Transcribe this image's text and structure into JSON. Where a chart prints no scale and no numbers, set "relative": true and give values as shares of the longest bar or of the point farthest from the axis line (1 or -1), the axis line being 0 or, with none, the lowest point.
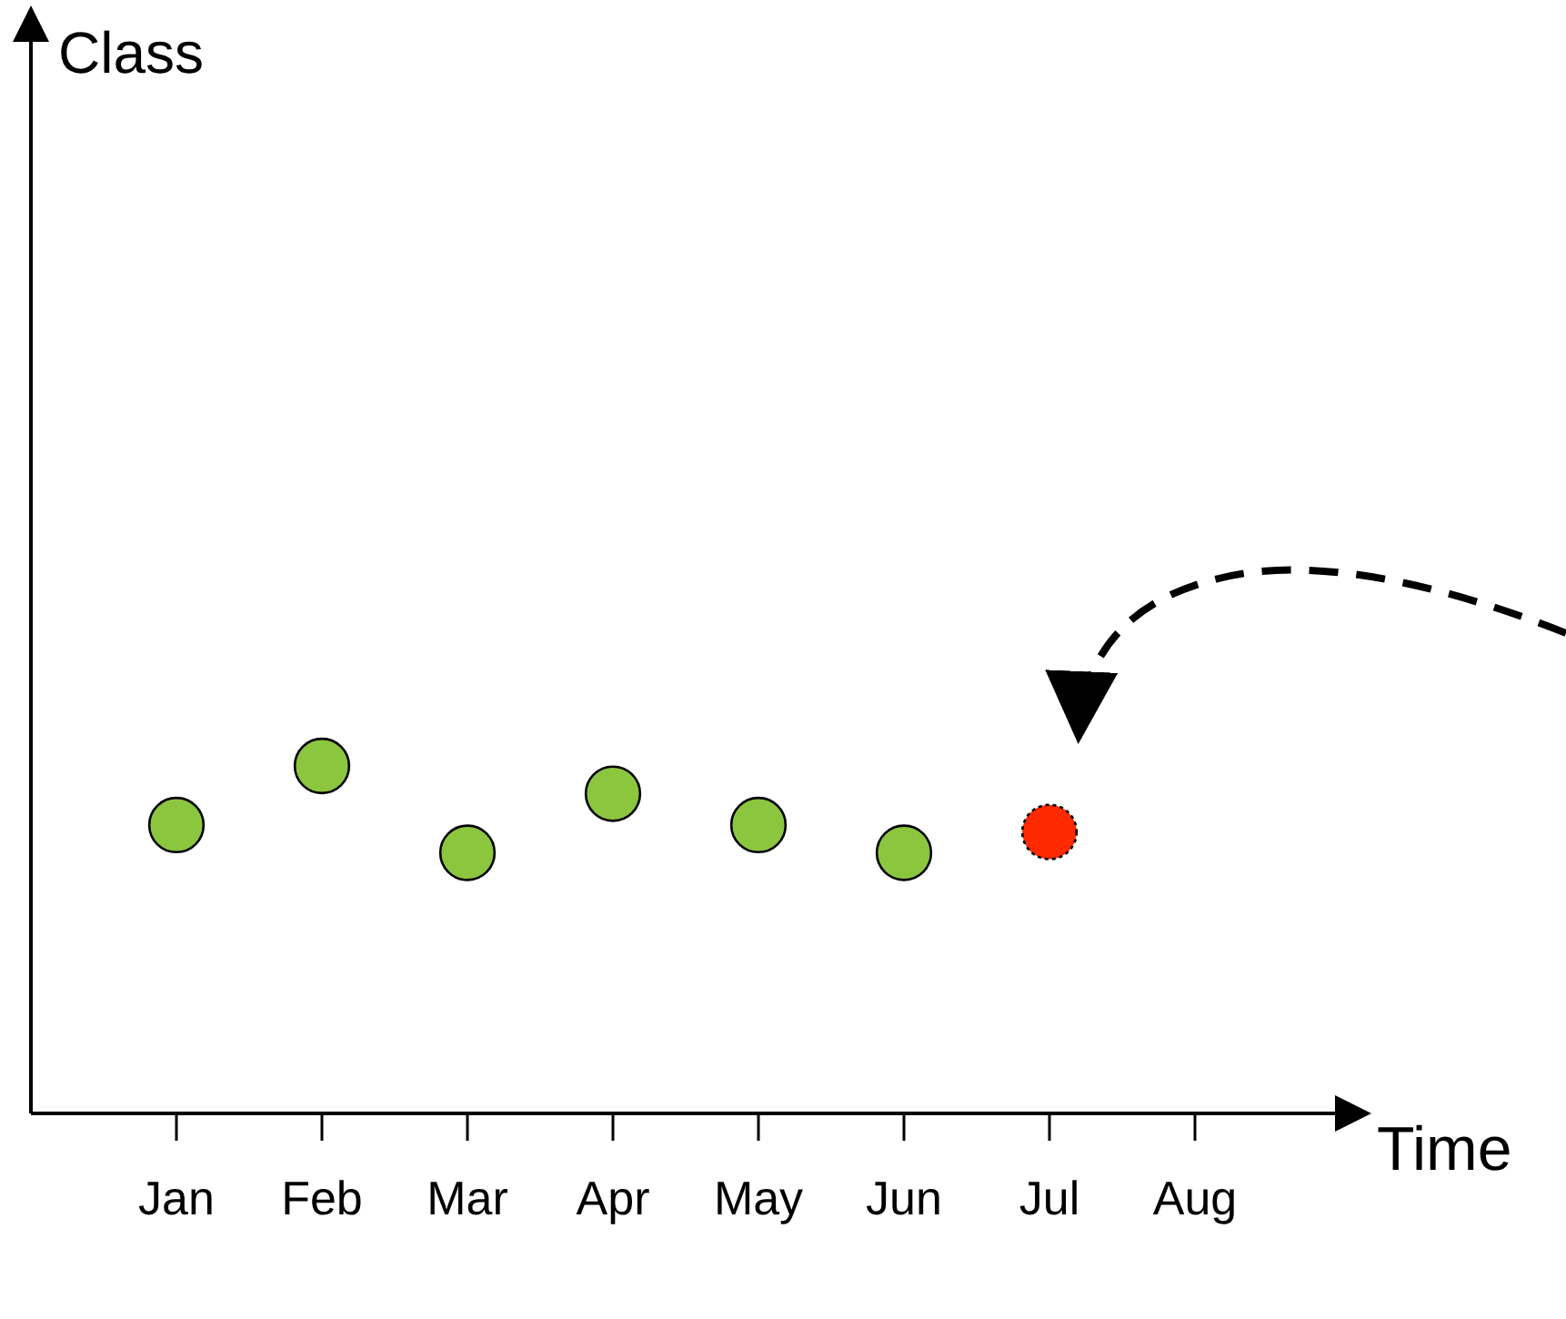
{
  "chart_data": {
    "type": "scatter",
    "relative": true,
    "xlabel": "Time",
    "annotations": [
      "Class"
    ],
    "marker": "circle",
    "categories": [
      "Jan",
      "Feb",
      "Mar",
      "Apr",
      "May",
      "Jun",
      "Jul",
      "Aug"
    ],
    "series": [
      {
        "color": "#8cc63f",
        "values": [
          0.83,
          1,
          0.75,
          0.92,
          0.83,
          0.75,
          null,
          null
        ]
      },
      {
        "color": "#ff2a00",
        "values": [
          null,
          null,
          null,
          null,
          null,
          null,
          0.81,
          null
        ]
      }
    ]
  }
}
